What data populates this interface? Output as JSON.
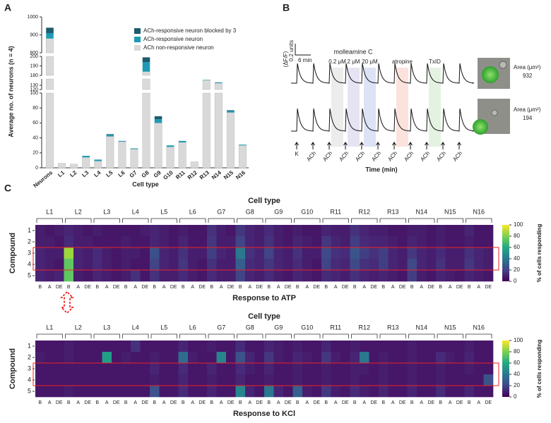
{
  "chart_data": [
    {
      "panel": "A",
      "type": "bar",
      "stacked": true,
      "xlabel": "Cell type",
      "ylabel": "Average no. of neurons (n = 4)",
      "categories": [
        "Neurons",
        "L1",
        "L2",
        "L3",
        "L4",
        "L5",
        "L6",
        "G7",
        "G8",
        "G9",
        "G10",
        "R11",
        "R12",
        "R13",
        "N14",
        "N15",
        "N16"
      ],
      "series": [
        {
          "name": "ACh non-responsive neuron",
          "color": "#d9d9d9",
          "values": [
            880,
            6,
            5,
            14,
            9,
            42,
            35,
            25,
            184,
            60,
            28,
            34,
            8,
            142,
            135,
            74,
            30
          ]
        },
        {
          "name": "ACh-responsive neuron",
          "color": "#1e9bb4",
          "values": [
            30,
            0,
            0,
            2,
            2,
            2,
            1,
            1,
            10,
            5,
            2,
            2,
            0,
            1,
            2,
            2,
            1
          ]
        },
        {
          "name": "ACh-responsive neuron blocked by 3",
          "color": "#1d5b6e",
          "values": [
            30,
            0,
            0,
            0,
            0,
            1,
            0,
            0,
            5,
            4,
            0,
            0,
            0,
            0,
            0,
            1,
            0
          ]
        }
      ],
      "y_segments": [
        {
          "ylim": [
            0,
            100
          ],
          "yticks": [
            0,
            20,
            40,
            60,
            80,
            100
          ]
        },
        {
          "ylim": [
            120,
            145
          ],
          "yticks": [
            120,
            130
          ]
        },
        {
          "ylim": [
            180,
            200
          ],
          "yticks": [
            180,
            190,
            200
          ]
        },
        {
          "ylim": [
            800,
            1000
          ],
          "yticks": [
            800,
            900,
            1000
          ]
        }
      ]
    },
    {
      "panel": "B",
      "type": "trace",
      "ylabel": "(ΔF/F)",
      "scalebar_y": "0.2 units",
      "scalebar_x": "6 min",
      "xlabel": "Time (min)",
      "stimuli": [
        "K",
        "ACh",
        "ACh",
        "ACh",
        "ACh",
        "ACh",
        "ACh",
        "ACh",
        "ACh",
        "ACh",
        "ACh"
      ],
      "treatment_title": "molleamine C",
      "treatments": [
        {
          "label": "0.2 μM",
          "color": "#ececec"
        },
        {
          "label": "2 μM",
          "color": "#e6e3f3"
        },
        {
          "label": "20 μM",
          "color": "#dde3f5"
        },
        {
          "label": "atropine",
          "color": "#fbe2dd"
        },
        {
          "label": "TxID",
          "color": "#e3f2e1"
        }
      ],
      "cells": [
        {
          "area_label": "Area (μm²)",
          "area": 932
        },
        {
          "area_label": "Area (μm²)",
          "area": 194
        }
      ]
    },
    {
      "panel": "C",
      "type": "heatmap",
      "title": "Cell type",
      "xlabel": "Response to ATP",
      "ylabel": "Compound",
      "groups": [
        "L1",
        "L2",
        "L3",
        "L4",
        "L5",
        "L6",
        "G7",
        "G8",
        "G9",
        "G10",
        "R11",
        "R12",
        "R13",
        "N14",
        "N15",
        "N16"
      ],
      "conditions": [
        "B",
        "A",
        "DE"
      ],
      "rows": [
        "1",
        "2",
        "3",
        "4",
        "5"
      ],
      "colormap": "viridis",
      "clim": [
        0,
        100
      ],
      "cticks": [
        0,
        20,
        40,
        60,
        80,
        100
      ],
      "clabel": "% of cells responding",
      "values": [
        [
          8,
          6,
          8,
          10,
          8,
          6,
          8,
          6,
          6,
          6,
          6,
          8,
          10,
          8,
          6,
          8,
          6,
          6,
          14,
          8,
          6,
          16,
          10,
          8,
          12,
          8,
          6,
          8,
          6,
          6,
          10,
          8,
          8,
          14,
          10,
          8,
          8,
          6,
          6,
          8,
          8,
          6,
          8,
          6,
          6,
          10,
          6,
          6
        ],
        [
          8,
          8,
          6,
          12,
          8,
          8,
          6,
          6,
          6,
          8,
          6,
          6,
          10,
          8,
          6,
          10,
          6,
          6,
          16,
          8,
          8,
          20,
          10,
          8,
          14,
          8,
          6,
          10,
          8,
          6,
          16,
          10,
          8,
          18,
          12,
          10,
          10,
          8,
          6,
          10,
          8,
          6,
          8,
          6,
          6,
          8,
          6,
          6
        ],
        [
          10,
          8,
          8,
          85,
          10,
          8,
          12,
          8,
          6,
          8,
          8,
          6,
          24,
          10,
          8,
          14,
          8,
          8,
          18,
          10,
          8,
          40,
          14,
          10,
          20,
          10,
          8,
          14,
          8,
          8,
          22,
          14,
          12,
          26,
          18,
          14,
          18,
          10,
          8,
          16,
          10,
          8,
          12,
          8,
          8,
          14,
          10,
          8
        ],
        [
          10,
          8,
          6,
          75,
          10,
          8,
          12,
          8,
          6,
          8,
          6,
          6,
          20,
          10,
          8,
          16,
          8,
          6,
          14,
          8,
          8,
          30,
          12,
          10,
          16,
          10,
          8,
          12,
          8,
          6,
          20,
          12,
          10,
          22,
          14,
          12,
          18,
          10,
          8,
          22,
          10,
          8,
          14,
          8,
          8,
          16,
          10,
          8
        ],
        [
          10,
          8,
          10,
          75,
          8,
          6,
          10,
          8,
          6,
          8,
          14,
          6,
          14,
          8,
          8,
          12,
          8,
          6,
          12,
          8,
          8,
          20,
          10,
          8,
          12,
          8,
          6,
          10,
          8,
          6,
          12,
          10,
          8,
          14,
          10,
          8,
          10,
          8,
          6,
          18,
          8,
          6,
          10,
          8,
          6,
          10,
          8,
          6
        ]
      ]
    },
    {
      "type": "heatmap",
      "title": "Cell type",
      "xlabel": "Response to KCl",
      "ylabel": "Compound",
      "groups": [
        "L1",
        "L2",
        "L3",
        "L4",
        "L5",
        "L6",
        "G7",
        "G8",
        "G9",
        "G10",
        "R11",
        "R12",
        "R13",
        "N14",
        "N15",
        "N16"
      ],
      "conditions": [
        "B",
        "A",
        "DE"
      ],
      "rows": [
        "1",
        "2",
        "3",
        "4",
        "5"
      ],
      "colormap": "viridis",
      "clim": [
        0,
        100
      ],
      "cticks": [
        0,
        20,
        40,
        60,
        80,
        100
      ],
      "clabel": "% of cells responding",
      "values": [
        [
          6,
          6,
          6,
          8,
          6,
          6,
          6,
          6,
          6,
          6,
          14,
          6,
          6,
          6,
          6,
          10,
          6,
          6,
          8,
          6,
          6,
          12,
          6,
          6,
          10,
          8,
          6,
          8,
          6,
          6,
          10,
          6,
          6,
          8,
          6,
          6,
          6,
          6,
          6,
          8,
          6,
          6,
          6,
          6,
          6,
          8,
          6,
          6
        ],
        [
          8,
          6,
          6,
          8,
          6,
          6,
          6,
          55,
          6,
          8,
          6,
          6,
          8,
          6,
          6,
          35,
          8,
          6,
          6,
          45,
          6,
          25,
          10,
          6,
          16,
          8,
          6,
          10,
          8,
          6,
          16,
          8,
          6,
          10,
          40,
          6,
          8,
          6,
          6,
          8,
          6,
          6,
          12,
          8,
          6,
          10,
          6,
          6
        ],
        [
          6,
          6,
          6,
          6,
          6,
          6,
          6,
          6,
          6,
          6,
          6,
          6,
          10,
          6,
          6,
          12,
          6,
          6,
          10,
          6,
          6,
          12,
          8,
          6,
          10,
          6,
          6,
          8,
          6,
          6,
          8,
          6,
          6,
          8,
          8,
          6,
          8,
          6,
          6,
          8,
          6,
          6,
          8,
          6,
          6,
          8,
          6,
          6
        ],
        [
          6,
          6,
          6,
          6,
          6,
          6,
          6,
          6,
          6,
          6,
          6,
          6,
          8,
          6,
          6,
          10,
          6,
          6,
          8,
          6,
          6,
          10,
          6,
          6,
          8,
          6,
          6,
          8,
          6,
          6,
          8,
          6,
          6,
          8,
          6,
          6,
          8,
          6,
          6,
          8,
          6,
          6,
          8,
          6,
          6,
          6,
          6,
          25
        ],
        [
          6,
          6,
          6,
          8,
          6,
          6,
          6,
          6,
          6,
          6,
          6,
          6,
          25,
          6,
          6,
          12,
          6,
          6,
          10,
          6,
          6,
          45,
          10,
          6,
          40,
          10,
          6,
          30,
          8,
          6,
          16,
          8,
          6,
          12,
          8,
          6,
          10,
          6,
          6,
          10,
          6,
          6,
          12,
          6,
          6,
          10,
          6,
          6
        ]
      ]
    }
  ]
}
